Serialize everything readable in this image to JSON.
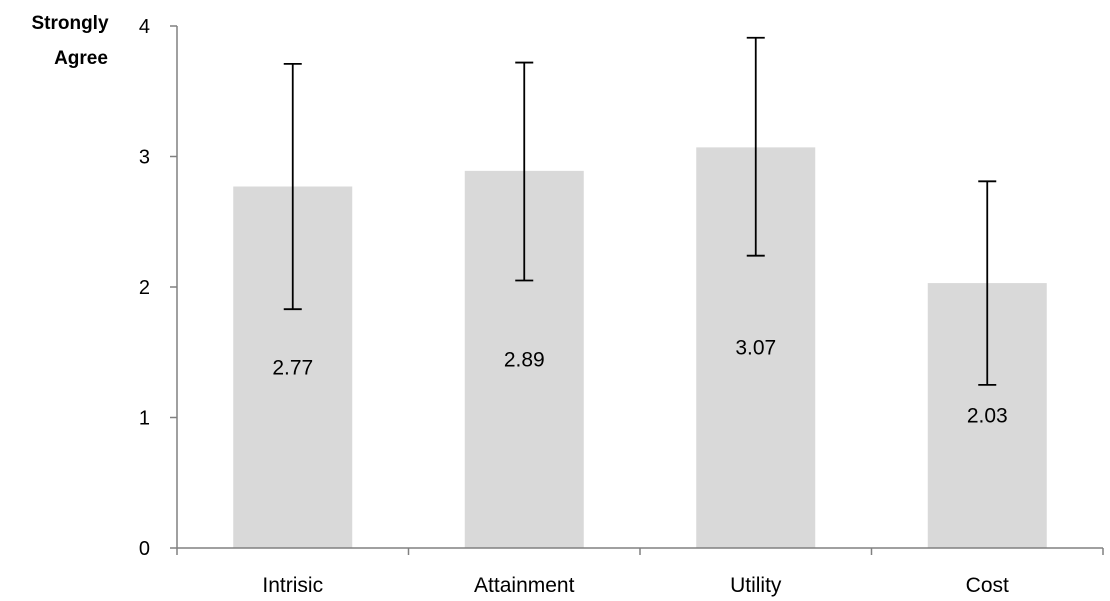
{
  "chart_data": {
    "type": "bar",
    "categories": [
      "Intrisic",
      "Attainment",
      "Utility",
      "Cost"
    ],
    "values": [
      2.77,
      2.89,
      3.07,
      2.03
    ],
    "data_labels": [
      "2.77",
      "2.89",
      "3.07",
      "2.03"
    ],
    "error_bars": [
      {
        "low": 1.83,
        "high": 3.71
      },
      {
        "low": 2.05,
        "high": 3.72
      },
      {
        "low": 2.24,
        "high": 3.91
      },
      {
        "low": 1.25,
        "high": 2.81
      }
    ],
    "y_ticks": [
      "0",
      "1",
      "2",
      "3",
      "4"
    ],
    "ylabel_line1": "Strongly",
    "ylabel_line2": "Agree",
    "ylim": [
      0,
      4
    ],
    "grid": false,
    "legend": "none",
    "bar_color": "#d9d9d9",
    "axis_color": "#808080",
    "error_bar_color": "#000000"
  }
}
